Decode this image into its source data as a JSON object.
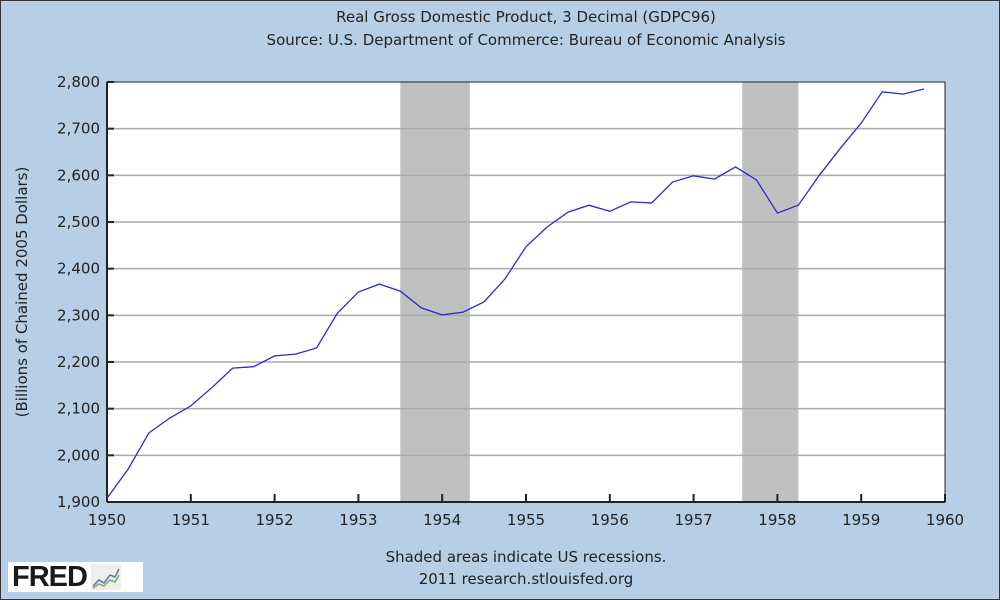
{
  "chart_data": {
    "type": "line",
    "title": "Real Gross Domestic Product, 3 Decimal (GDPC96)",
    "subtitle": "Source: U.S. Department of Commerce: Bureau of Economic Analysis",
    "xlabel": "",
    "ylabel": "(Billions of Chained 2005 Dollars)",
    "xlim": [
      1950,
      1960
    ],
    "ylim": [
      1900,
      2800
    ],
    "x_ticks": [
      "1950",
      "1951",
      "1952",
      "1953",
      "1954",
      "1955",
      "1956",
      "1957",
      "1958",
      "1959",
      "1960"
    ],
    "y_ticks": [
      "1,900",
      "2,000",
      "2,100",
      "2,200",
      "2,300",
      "2,400",
      "2,500",
      "2,600",
      "2,700",
      "2,800"
    ],
    "grid": true,
    "line_color": "#2b2bd0",
    "recession_color": "#c0c0c0",
    "recessions": [
      [
        1953.5,
        1954.33
      ],
      [
        1957.58,
        1958.25
      ]
    ],
    "x": [
      1950,
      1950.25,
      1950.5,
      1950.75,
      1951,
      1951.25,
      1951.5,
      1951.75,
      1952,
      1952.25,
      1952.5,
      1952.75,
      1953,
      1953.25,
      1953.5,
      1953.75,
      1954,
      1954.25,
      1954.5,
      1954.75,
      1955,
      1955.25,
      1955.5,
      1955.75,
      1956,
      1956.25,
      1956.5,
      1956.75,
      1957,
      1957.25,
      1957.5,
      1957.75,
      1958,
      1958.25,
      1958.5,
      1958.75,
      1959,
      1959.25,
      1959.5,
      1959.75
    ],
    "values": [
      1908,
      1970,
      2048,
      2080,
      2106,
      2145,
      2187,
      2190,
      2213,
      2217,
      2230,
      2305,
      2350,
      2367,
      2352,
      2316,
      2301,
      2307,
      2329,
      2378,
      2447,
      2489,
      2521,
      2536,
      2523,
      2543,
      2541,
      2586,
      2599,
      2592,
      2618,
      2590,
      2519,
      2536,
      2600,
      2658,
      2712,
      2779,
      2774,
      2785
    ]
  },
  "notes": {
    "recession_note": "Shaded areas indicate US recessions.",
    "credit": "2011 research.stlouisfed.org"
  },
  "logo": {
    "text": "FRED"
  }
}
